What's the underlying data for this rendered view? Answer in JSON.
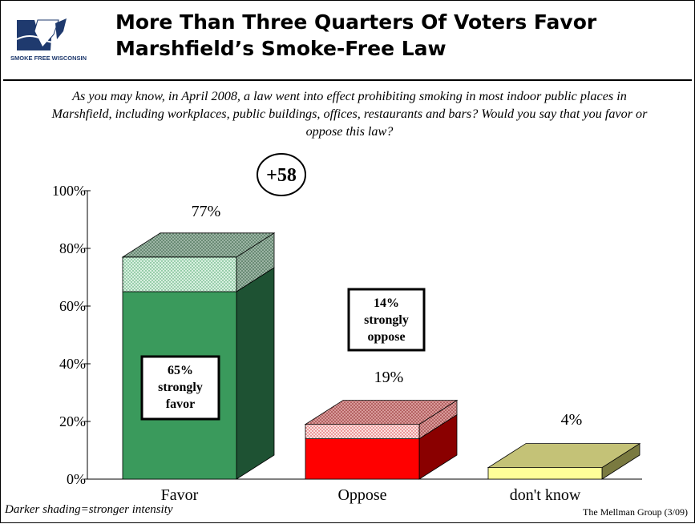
{
  "title_line1": "More Than Three Quarters Of Voters Favor",
  "title_line2": "Marshfield’s Smoke-Free Law",
  "logo_text": "SMOKE FREE WISCONSIN",
  "question": "As you may know, in April 2008, a law went into effect prohibiting smoking in most indoor public places in Marshfield, including workplaces, public buildings, offices, restaurants and bars?  Would you say that you favor or oppose this law?",
  "net_badge": "+58",
  "footnote": "Darker shading=stronger intensity",
  "credit": "The Mellman Group (3/09)",
  "colors": {
    "favor_front": "#3a9a5c",
    "favor_side": "#1e5233",
    "favor_light": "#c6ead4",
    "oppose_front": "#ff0000",
    "oppose_side": "#8a0000",
    "oppose_light": "#f4c2c2",
    "dontknow_front": "#ffff99",
    "dontknow_top": "#c4c277",
    "dontknow_side": "#7a7a40"
  },
  "chart_data": {
    "type": "bar",
    "stacked": true,
    "categories": [
      "Favor",
      "Oppose",
      "don't know"
    ],
    "series": [
      {
        "values": [
          65,
          14,
          4
        ]
      },
      {
        "values": [
          12,
          5,
          0
        ]
      }
    ],
    "totals": [
      77,
      19,
      4
    ],
    "total_labels": [
      "77%",
      "19%",
      "4%"
    ],
    "yticks": [
      "0%",
      "20%",
      "40%",
      "60%",
      "80%",
      "100%"
    ],
    "ylim": [
      0,
      100
    ],
    "annotations": [
      {
        "category": "Favor",
        "lines": [
          "65%",
          "strongly",
          "favor"
        ]
      },
      {
        "category": "Oppose",
        "lines": [
          "14%",
          "strongly",
          "oppose"
        ]
      }
    ]
  }
}
